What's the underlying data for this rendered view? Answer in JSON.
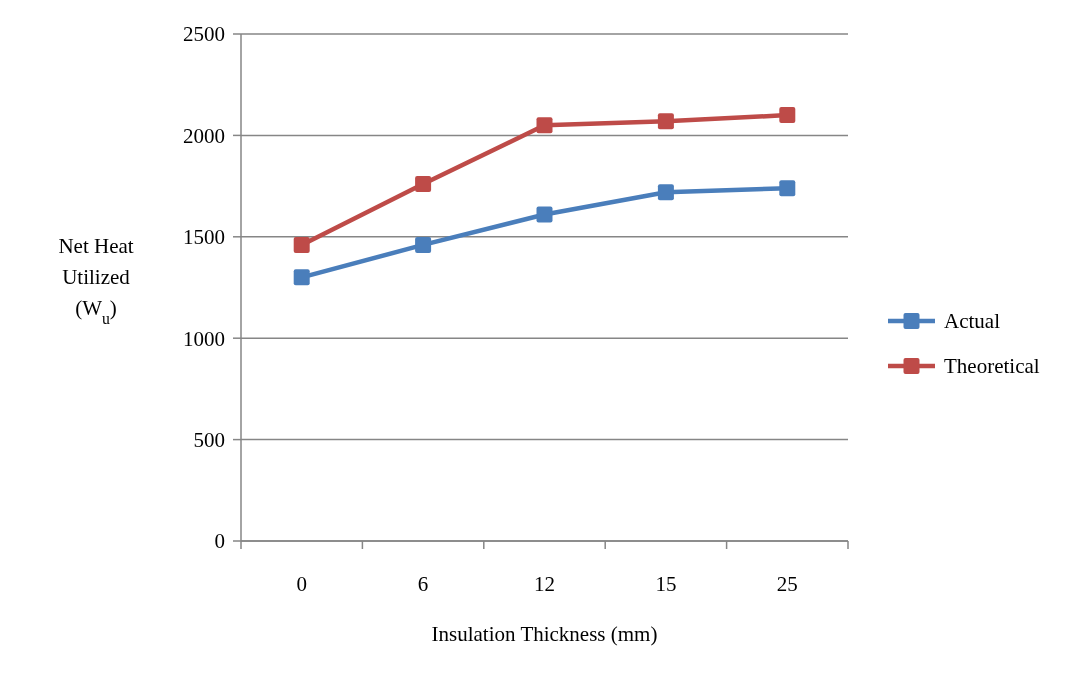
{
  "chart_data": {
    "type": "line",
    "xlabel": "Insulation Thickness (mm)",
    "ylabel": "Net Heat Utilized (W$_{u}$)",
    "categories": [
      "0",
      "6",
      "12",
      "15",
      "25"
    ],
    "series": [
      {
        "name": "Actual",
        "color": "#4a7ebb",
        "values": [
          1300,
          1460,
          1610,
          1720,
          1740
        ]
      },
      {
        "name": "Theoretical",
        "color": "#be4b48",
        "values": [
          1460,
          1760,
          2050,
          2070,
          2100
        ]
      }
    ],
    "ylim": [
      0,
      2500
    ],
    "yticks": [
      0,
      500,
      1000,
      1500,
      2000,
      2500
    ],
    "grid": "y",
    "legend": "right",
    "marker": "square",
    "line_style": "solid"
  }
}
